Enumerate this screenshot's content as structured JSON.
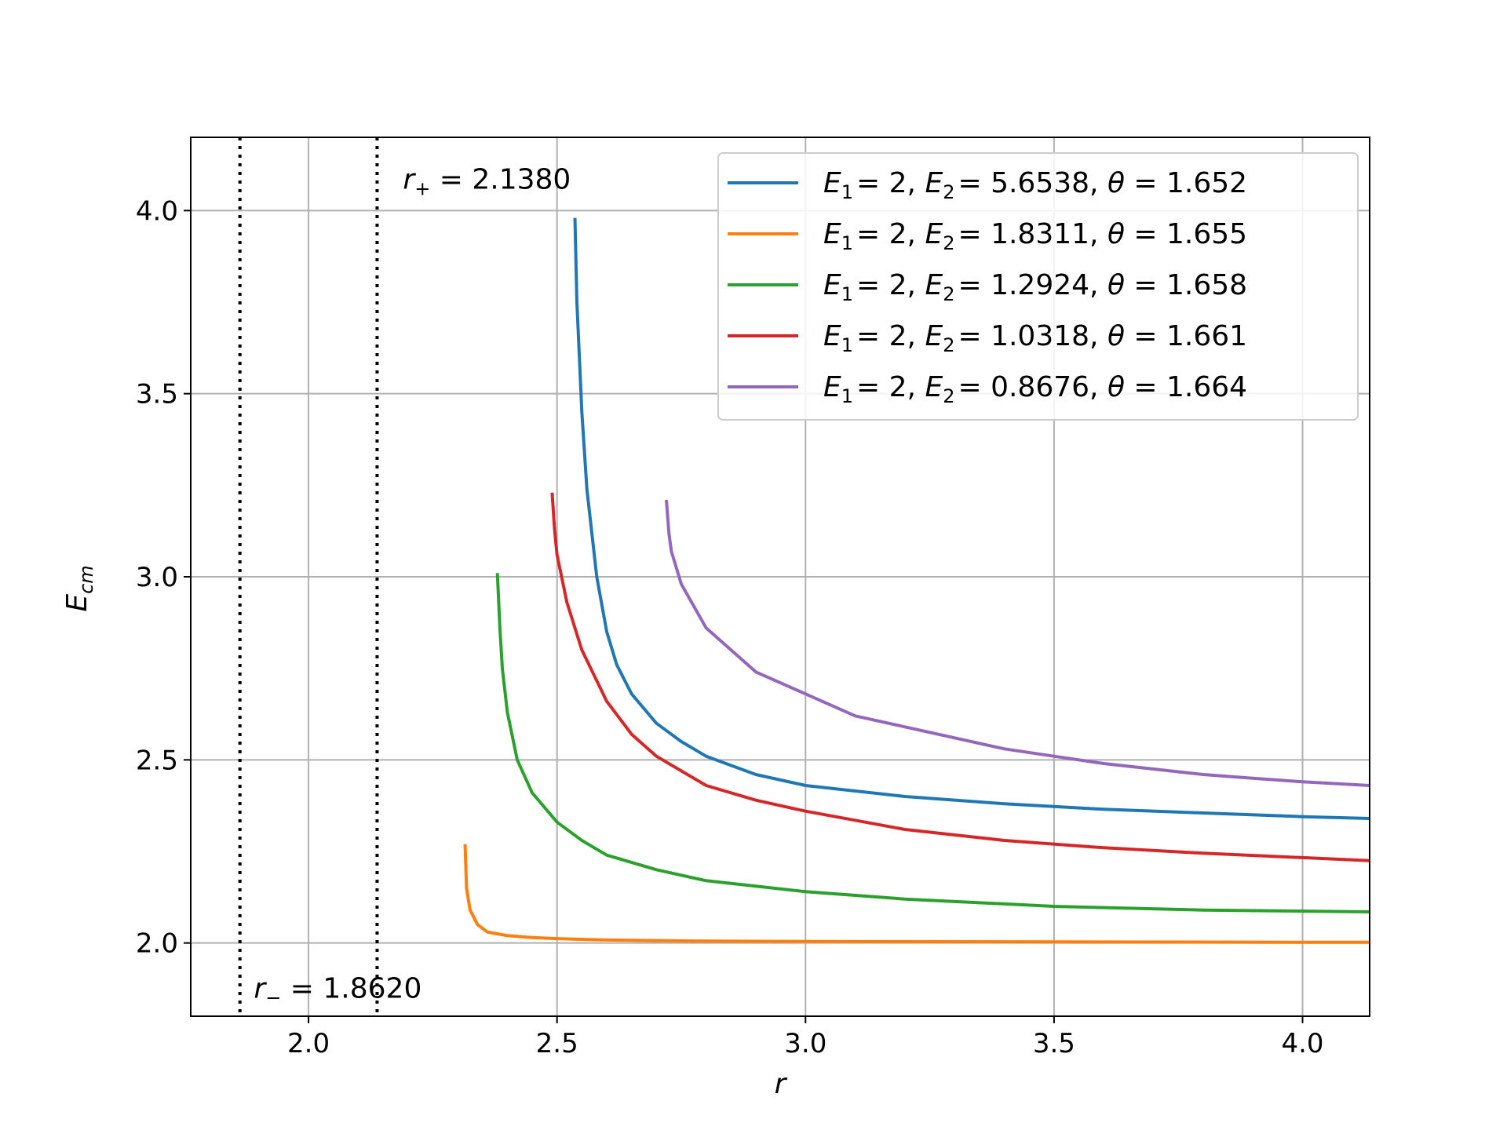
{
  "chart_data": {
    "type": "line",
    "xlabel": "r",
    "ylabel": "E_cm",
    "xlim": [
      1.763,
      4.135
    ],
    "ylim": [
      1.8,
      4.2
    ],
    "xticks": [
      2.0,
      2.5,
      3.0,
      3.5,
      4.0
    ],
    "yticks": [
      2.0,
      2.5,
      3.0,
      3.5,
      4.0
    ],
    "xtick_labels": [
      "2.0",
      "2.5",
      "3.0",
      "3.5",
      "4.0"
    ],
    "ytick_labels": [
      "2.0",
      "2.5",
      "3.0",
      "3.5",
      "4.0"
    ],
    "grid": true,
    "legend_position": "top-right",
    "vlines": [
      {
        "x": 1.862,
        "style": "dotted",
        "color": "#000000"
      },
      {
        "x": 2.138,
        "style": "dotted",
        "color": "#000000"
      }
    ],
    "annotations": [
      {
        "sym": "r",
        "sub": "+",
        "text": "= 2.1380",
        "x": 2.19,
        "y": 4.06
      },
      {
        "sym": "r",
        "sub": "−",
        "text": "= 1.8620",
        "x": 1.89,
        "y": 1.85
      }
    ],
    "series": [
      {
        "name": "E1 = 2, E2 = 5.6538, θ = 1.652",
        "legend": {
          "E2": "5.6538",
          "theta": "1.652"
        },
        "color": "#1f77b4",
        "x": [
          2.536,
          2.54,
          2.55,
          2.56,
          2.58,
          2.6,
          2.62,
          2.65,
          2.7,
          2.75,
          2.8,
          2.9,
          3.0,
          3.2,
          3.4,
          3.6,
          3.8,
          4.0,
          4.135
        ],
        "y": [
          3.98,
          3.75,
          3.45,
          3.24,
          3.0,
          2.85,
          2.76,
          2.68,
          2.6,
          2.55,
          2.51,
          2.46,
          2.43,
          2.4,
          2.38,
          2.365,
          2.355,
          2.345,
          2.34
        ]
      },
      {
        "name": "E1 = 2, E2 = 1.8311, θ = 1.655",
        "legend": {
          "E2": "1.8311",
          "theta": "1.655"
        },
        "color": "#ff7f0e",
        "x": [
          2.315,
          2.318,
          2.325,
          2.34,
          2.36,
          2.4,
          2.45,
          2.5,
          2.6,
          2.8,
          3.0,
          3.5,
          4.0,
          4.135
        ],
        "y": [
          2.27,
          2.15,
          2.09,
          2.05,
          2.03,
          2.02,
          2.015,
          2.012,
          2.008,
          2.005,
          2.004,
          2.003,
          2.002,
          2.002
        ]
      },
      {
        "name": "E1 = 2, E2 = 1.2924, θ = 1.658",
        "legend": {
          "E2": "1.2924",
          "theta": "1.658"
        },
        "color": "#2ca02c",
        "x": [
          2.38,
          2.385,
          2.39,
          2.4,
          2.42,
          2.45,
          2.5,
          2.55,
          2.6,
          2.7,
          2.8,
          3.0,
          3.2,
          3.5,
          3.8,
          4.135
        ],
        "y": [
          3.01,
          2.86,
          2.75,
          2.63,
          2.5,
          2.41,
          2.33,
          2.28,
          2.24,
          2.2,
          2.17,
          2.14,
          2.12,
          2.1,
          2.09,
          2.085
        ]
      },
      {
        "name": "E1 = 2, E2 = 1.0318, θ = 1.661",
        "legend": {
          "E2": "1.0318",
          "theta": "1.661"
        },
        "color": "#d62728",
        "x": [
          2.49,
          2.495,
          2.5,
          2.52,
          2.55,
          2.6,
          2.65,
          2.7,
          2.8,
          2.9,
          3.0,
          3.2,
          3.4,
          3.6,
          3.8,
          4.135
        ],
        "y": [
          3.23,
          3.13,
          3.06,
          2.93,
          2.8,
          2.66,
          2.57,
          2.51,
          2.43,
          2.39,
          2.36,
          2.31,
          2.28,
          2.26,
          2.245,
          2.225
        ]
      },
      {
        "name": "E1 = 2, E2 = 0.8676, θ = 1.664",
        "legend": {
          "E2": "0.8676",
          "theta": "1.664"
        },
        "color": "#9467bd",
        "x": [
          2.72,
          2.725,
          2.73,
          2.75,
          2.8,
          2.9,
          3.0,
          3.1,
          3.2,
          3.3,
          3.4,
          3.5,
          3.6,
          3.7,
          3.8,
          3.9,
          4.0,
          4.135
        ],
        "y": [
          3.21,
          3.12,
          3.07,
          2.98,
          2.86,
          2.74,
          2.68,
          2.62,
          2.59,
          2.56,
          2.53,
          2.51,
          2.49,
          2.475,
          2.46,
          2.45,
          2.44,
          2.43
        ]
      }
    ]
  }
}
